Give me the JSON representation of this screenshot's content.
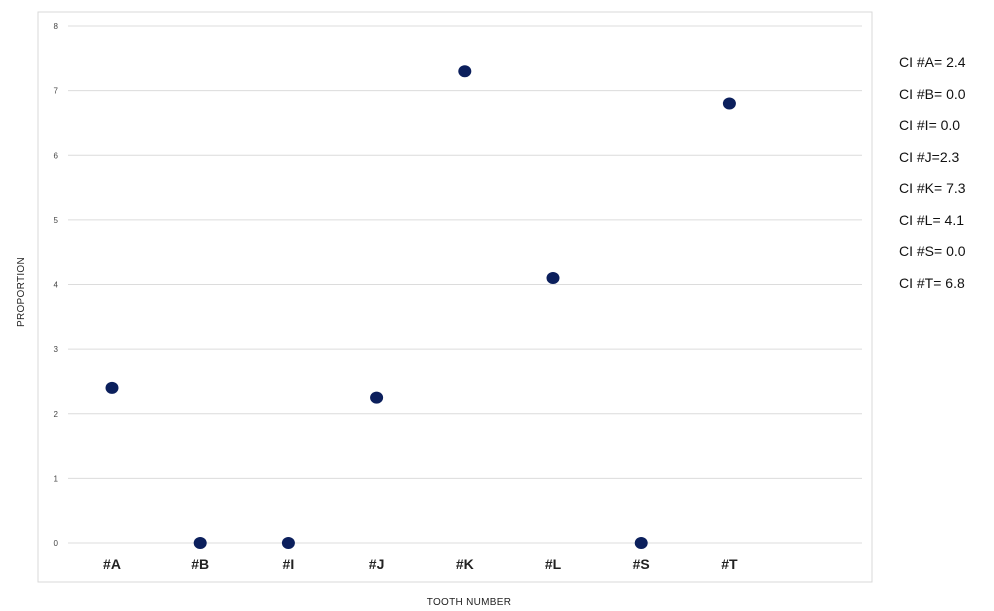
{
  "chart_data": {
    "type": "scatter",
    "title": "",
    "xlabel": "TOOTH NUMBER",
    "ylabel": "PROPORTION",
    "categories": [
      "#A",
      "#B",
      "#I",
      "#J",
      "#K",
      "#L",
      "#S",
      "#T"
    ],
    "values": [
      2.4,
      0.0,
      0.0,
      2.25,
      7.3,
      4.1,
      0.0,
      6.8
    ],
    "ylim": [
      0,
      8
    ],
    "yticks": [
      "0",
      "1",
      "2",
      "3",
      "4",
      "5",
      "6",
      "7",
      "8"
    ],
    "grid": "horizontal",
    "marker_color": "#0b1f5c",
    "annotations": [
      "CI #A= 2.4",
      "CI #B= 0.0",
      "CI #I= 0.0",
      "CI #J=2.3",
      "CI #K= 7.3",
      "CI #L= 4.1",
      "CI #S= 0.0",
      "CI #T= 6.8"
    ]
  }
}
